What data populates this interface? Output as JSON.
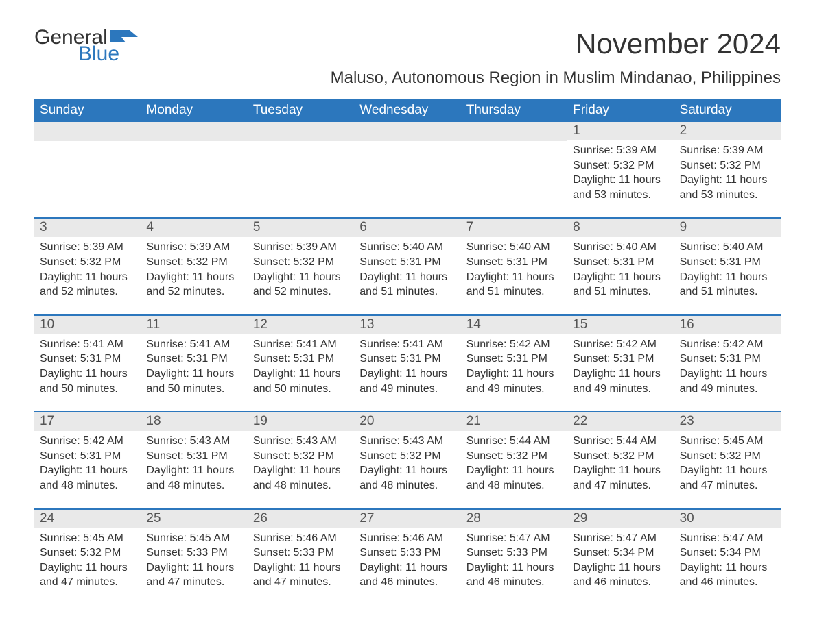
{
  "logo": {
    "text1": "General",
    "text2": "Blue",
    "flag_color": "#2c77bd"
  },
  "title": "November 2024",
  "location": "Maluso, Autonomous Region in Muslim Mindanao, Philippines",
  "colors": {
    "header_bg": "#2c77bd",
    "header_text": "#ffffff",
    "daynum_bg": "#e9e9e9",
    "row_border": "#2c77bd",
    "text": "#333333",
    "background": "#ffffff"
  },
  "weekdays": [
    "Sunday",
    "Monday",
    "Tuesday",
    "Wednesday",
    "Thursday",
    "Friday",
    "Saturday"
  ],
  "weeks": [
    [
      null,
      null,
      null,
      null,
      null,
      {
        "n": "1",
        "sunrise": "Sunrise: 5:39 AM",
        "sunset": "Sunset: 5:32 PM",
        "daylight": "Daylight: 11 hours and 53 minutes."
      },
      {
        "n": "2",
        "sunrise": "Sunrise: 5:39 AM",
        "sunset": "Sunset: 5:32 PM",
        "daylight": "Daylight: 11 hours and 53 minutes."
      }
    ],
    [
      {
        "n": "3",
        "sunrise": "Sunrise: 5:39 AM",
        "sunset": "Sunset: 5:32 PM",
        "daylight": "Daylight: 11 hours and 52 minutes."
      },
      {
        "n": "4",
        "sunrise": "Sunrise: 5:39 AM",
        "sunset": "Sunset: 5:32 PM",
        "daylight": "Daylight: 11 hours and 52 minutes."
      },
      {
        "n": "5",
        "sunrise": "Sunrise: 5:39 AM",
        "sunset": "Sunset: 5:32 PM",
        "daylight": "Daylight: 11 hours and 52 minutes."
      },
      {
        "n": "6",
        "sunrise": "Sunrise: 5:40 AM",
        "sunset": "Sunset: 5:31 PM",
        "daylight": "Daylight: 11 hours and 51 minutes."
      },
      {
        "n": "7",
        "sunrise": "Sunrise: 5:40 AM",
        "sunset": "Sunset: 5:31 PM",
        "daylight": "Daylight: 11 hours and 51 minutes."
      },
      {
        "n": "8",
        "sunrise": "Sunrise: 5:40 AM",
        "sunset": "Sunset: 5:31 PM",
        "daylight": "Daylight: 11 hours and 51 minutes."
      },
      {
        "n": "9",
        "sunrise": "Sunrise: 5:40 AM",
        "sunset": "Sunset: 5:31 PM",
        "daylight": "Daylight: 11 hours and 51 minutes."
      }
    ],
    [
      {
        "n": "10",
        "sunrise": "Sunrise: 5:41 AM",
        "sunset": "Sunset: 5:31 PM",
        "daylight": "Daylight: 11 hours and 50 minutes."
      },
      {
        "n": "11",
        "sunrise": "Sunrise: 5:41 AM",
        "sunset": "Sunset: 5:31 PM",
        "daylight": "Daylight: 11 hours and 50 minutes."
      },
      {
        "n": "12",
        "sunrise": "Sunrise: 5:41 AM",
        "sunset": "Sunset: 5:31 PM",
        "daylight": "Daylight: 11 hours and 50 minutes."
      },
      {
        "n": "13",
        "sunrise": "Sunrise: 5:41 AM",
        "sunset": "Sunset: 5:31 PM",
        "daylight": "Daylight: 11 hours and 49 minutes."
      },
      {
        "n": "14",
        "sunrise": "Sunrise: 5:42 AM",
        "sunset": "Sunset: 5:31 PM",
        "daylight": "Daylight: 11 hours and 49 minutes."
      },
      {
        "n": "15",
        "sunrise": "Sunrise: 5:42 AM",
        "sunset": "Sunset: 5:31 PM",
        "daylight": "Daylight: 11 hours and 49 minutes."
      },
      {
        "n": "16",
        "sunrise": "Sunrise: 5:42 AM",
        "sunset": "Sunset: 5:31 PM",
        "daylight": "Daylight: 11 hours and 49 minutes."
      }
    ],
    [
      {
        "n": "17",
        "sunrise": "Sunrise: 5:42 AM",
        "sunset": "Sunset: 5:31 PM",
        "daylight": "Daylight: 11 hours and 48 minutes."
      },
      {
        "n": "18",
        "sunrise": "Sunrise: 5:43 AM",
        "sunset": "Sunset: 5:31 PM",
        "daylight": "Daylight: 11 hours and 48 minutes."
      },
      {
        "n": "19",
        "sunrise": "Sunrise: 5:43 AM",
        "sunset": "Sunset: 5:32 PM",
        "daylight": "Daylight: 11 hours and 48 minutes."
      },
      {
        "n": "20",
        "sunrise": "Sunrise: 5:43 AM",
        "sunset": "Sunset: 5:32 PM",
        "daylight": "Daylight: 11 hours and 48 minutes."
      },
      {
        "n": "21",
        "sunrise": "Sunrise: 5:44 AM",
        "sunset": "Sunset: 5:32 PM",
        "daylight": "Daylight: 11 hours and 48 minutes."
      },
      {
        "n": "22",
        "sunrise": "Sunrise: 5:44 AM",
        "sunset": "Sunset: 5:32 PM",
        "daylight": "Daylight: 11 hours and 47 minutes."
      },
      {
        "n": "23",
        "sunrise": "Sunrise: 5:45 AM",
        "sunset": "Sunset: 5:32 PM",
        "daylight": "Daylight: 11 hours and 47 minutes."
      }
    ],
    [
      {
        "n": "24",
        "sunrise": "Sunrise: 5:45 AM",
        "sunset": "Sunset: 5:32 PM",
        "daylight": "Daylight: 11 hours and 47 minutes."
      },
      {
        "n": "25",
        "sunrise": "Sunrise: 5:45 AM",
        "sunset": "Sunset: 5:33 PM",
        "daylight": "Daylight: 11 hours and 47 minutes."
      },
      {
        "n": "26",
        "sunrise": "Sunrise: 5:46 AM",
        "sunset": "Sunset: 5:33 PM",
        "daylight": "Daylight: 11 hours and 47 minutes."
      },
      {
        "n": "27",
        "sunrise": "Sunrise: 5:46 AM",
        "sunset": "Sunset: 5:33 PM",
        "daylight": "Daylight: 11 hours and 46 minutes."
      },
      {
        "n": "28",
        "sunrise": "Sunrise: 5:47 AM",
        "sunset": "Sunset: 5:33 PM",
        "daylight": "Daylight: 11 hours and 46 minutes."
      },
      {
        "n": "29",
        "sunrise": "Sunrise: 5:47 AM",
        "sunset": "Sunset: 5:34 PM",
        "daylight": "Daylight: 11 hours and 46 minutes."
      },
      {
        "n": "30",
        "sunrise": "Sunrise: 5:47 AM",
        "sunset": "Sunset: 5:34 PM",
        "daylight": "Daylight: 11 hours and 46 minutes."
      }
    ]
  ]
}
